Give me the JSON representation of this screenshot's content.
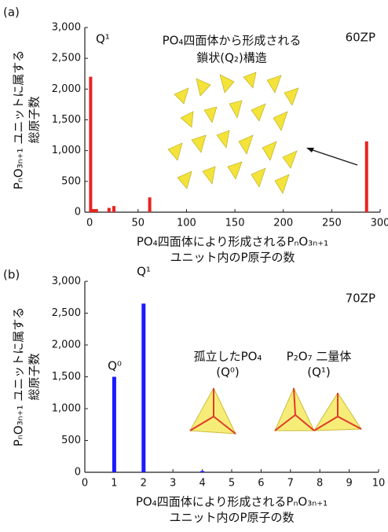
{
  "chart_data": [
    {
      "type": "bar",
      "panel": "(a)",
      "color": "#e8231f",
      "x": [
        1,
        4,
        7,
        20,
        25,
        62,
        286
      ],
      "values": [
        2200,
        50,
        50,
        70,
        100,
        240,
        1150
      ],
      "xlim": [
        -5,
        300
      ],
      "xticks": [
        0,
        50,
        100,
        150,
        200,
        250,
        300
      ],
      "ylim": [
        0,
        3000
      ],
      "yticks": [
        0,
        500,
        {
          "value": 1000,
          "label": "1,000"
        },
        {
          "value": 1500,
          "label": "1,500"
        },
        {
          "value": 2000,
          "label": "2,000"
        },
        {
          "value": 2500,
          "label": "2,500"
        },
        {
          "value": 3000,
          "label": "3,000"
        }
      ],
      "y_label": [
        "PₙO₃ₙ₊₁ ユニットに属する",
        "総原子数"
      ],
      "x_label": [
        "PO₄四面体により形成されるPₙO₃ₙ₊₁",
        "ユニット内のP原子の数"
      ],
      "annotations": [
        "Q¹",
        "60ZP",
        "PO₄四面体から形成される",
        "鎖状(Q₂)構造"
      ]
    },
    {
      "type": "bar",
      "panel": "(b)",
      "color": "#1a1aff",
      "x": [
        1,
        2,
        4
      ],
      "values": [
        1500,
        2650,
        20
      ],
      "xlim": [
        0,
        10
      ],
      "xticks": [
        0,
        1,
        2,
        3,
        4,
        5,
        6,
        7,
        8,
        9,
        10
      ],
      "ylim": [
        0,
        3000
      ],
      "yticks": [
        0,
        500,
        {
          "value": 1000,
          "label": "1,000"
        },
        {
          "value": 1500,
          "label": "1,500"
        },
        {
          "value": 2000,
          "label": "2,000"
        },
        {
          "value": 2500,
          "label": "2,500"
        },
        {
          "value": 3000,
          "label": "3,000"
        }
      ],
      "y_label": [
        "PₙO₃ₙ₊₁ ユニットに属する",
        "総原子数"
      ],
      "x_label": [
        "PO₄四面体により形成されるPₙO₃ₙ₊₁",
        "ユニット内のP原子の数"
      ],
      "annotations": [
        "Q⁰",
        "Q¹",
        "70ZP",
        "孤立したPO₄",
        "(Q⁰)",
        "P₂O₇ 二量体",
        "(Q¹)"
      ]
    }
  ]
}
